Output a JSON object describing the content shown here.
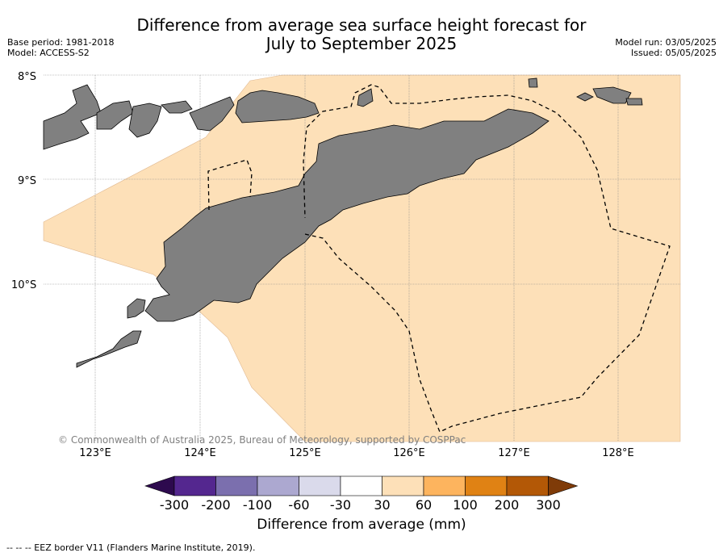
{
  "title_line1": "Difference from average sea surface height forecast for",
  "title_line2": "July to September 2025",
  "base_period": "Base period: 1981-2018",
  "model": "Model: ACCESS-S2",
  "model_run": "Model run: 03/05/2025",
  "issued": "Issued: 05/05/2025",
  "lat_labels": [
    "8°S",
    "9°S",
    "10°S"
  ],
  "lon_labels": [
    "123°E",
    "124°E",
    "125°E",
    "126°E",
    "127°E",
    "128°E"
  ],
  "copyright": "© Commonwealth of Australia 2025, Bureau of Meteorology, supported by COSPPac",
  "colorbar": {
    "label": "Difference from average (mm)",
    "ticks": [
      "-300",
      "-200",
      "-100",
      "-60",
      "-30",
      "30",
      "60",
      "100",
      "200",
      "300"
    ],
    "colors": [
      "#2d0a4e",
      "#54278f",
      "#7b6fae",
      "#aca8d0",
      "#dadaeb",
      "#ffffff",
      "#fde0b8",
      "#fdb45e",
      "#e08214",
      "#b35806",
      "#7f3b08"
    ]
  },
  "legend_footer": "--  --  -- EEZ border V11 (Flanders Marine Institute, 2019).",
  "colors": {
    "land": "#808080",
    "ocean_fill": "#fde0b8"
  }
}
